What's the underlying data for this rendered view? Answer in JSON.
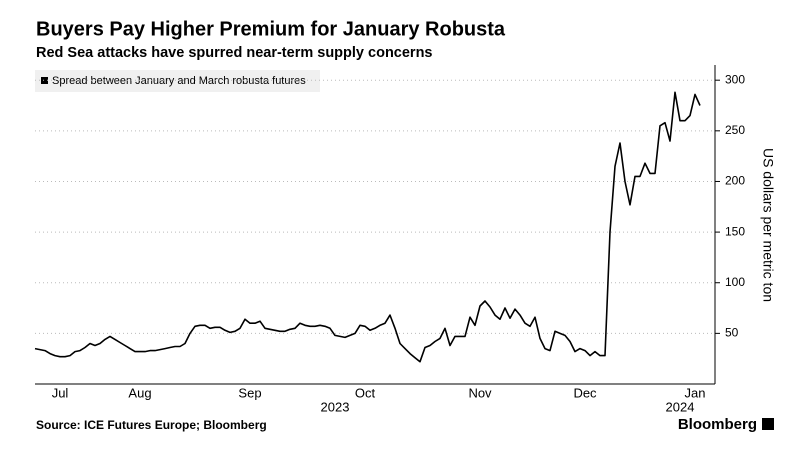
{
  "chart_data": {
    "type": "line",
    "title": "Buyers Pay Higher Premium for January Robusta",
    "subtitle": "Red Sea attacks have spurred near-term supply concerns",
    "y_axis_label": "US dollars per metric ton",
    "source": "Source: ICE Futures Europe; Bloomberg",
    "brand": "Bloomberg",
    "year_labels": [
      "2023",
      "2024"
    ],
    "categories": [
      null,
      null,
      null,
      null,
      null,
      "Jul",
      null,
      null,
      null,
      null,
      null,
      null,
      null,
      null,
      null,
      null,
      null,
      null,
      null,
      null,
      null,
      "Aug",
      null,
      null,
      null,
      null,
      null,
      null,
      null,
      null,
      null,
      null,
      null,
      null,
      null,
      null,
      null,
      null,
      null,
      null,
      null,
      null,
      null,
      "Sep",
      null,
      null,
      null,
      null,
      null,
      null,
      null,
      null,
      null,
      null,
      null,
      null,
      null,
      null,
      null,
      null,
      null,
      null,
      null,
      null,
      null,
      null,
      "Oct",
      null,
      null,
      null,
      null,
      null,
      null,
      null,
      null,
      null,
      null,
      null,
      null,
      null,
      null,
      null,
      null,
      null,
      null,
      null,
      null,
      null,
      null,
      "Nov",
      null,
      null,
      null,
      null,
      null,
      null,
      null,
      null,
      null,
      null,
      null,
      null,
      null,
      null,
      null,
      null,
      null,
      null,
      null,
      null,
      "Dec",
      null,
      null,
      null,
      null,
      null,
      null,
      null,
      null,
      null,
      null,
      null,
      null,
      null,
      null,
      null,
      null,
      null,
      null,
      null,
      null,
      null,
      "Jan",
      null
    ],
    "series": [
      {
        "name": "Spread between January and March robusta futures",
        "color": "#000000",
        "values": [
          35,
          34,
          33,
          30,
          28,
          27,
          27,
          28,
          32,
          33,
          36,
          40,
          38,
          40,
          44,
          47,
          44,
          41,
          38,
          35,
          32,
          32,
          32,
          33,
          33,
          34,
          35,
          36,
          37,
          37,
          40,
          50,
          57,
          58,
          58,
          55,
          56,
          56,
          53,
          51,
          52,
          55,
          64,
          60,
          60,
          62,
          55,
          54,
          53,
          52,
          52,
          54,
          55,
          60,
          58,
          57,
          57,
          58,
          57,
          55,
          48,
          47,
          46,
          48,
          50,
          58,
          57,
          53,
          55,
          58,
          60,
          68,
          55,
          40,
          35,
          30,
          26,
          22,
          36,
          38,
          42,
          45,
          55,
          38,
          47,
          47,
          47,
          66,
          58,
          77,
          82,
          76,
          68,
          64,
          75,
          65,
          74,
          68,
          60,
          57,
          66,
          45,
          35,
          33,
          52,
          50,
          48,
          42,
          32,
          35,
          33,
          28,
          32,
          28,
          28,
          150,
          215,
          238,
          200,
          177,
          205,
          205,
          218,
          208,
          208,
          255,
          258,
          240,
          288,
          260,
          260,
          265,
          286,
          275
        ]
      }
    ],
    "ylim": [
      0,
      315
    ],
    "yticks": [
      50,
      100,
      150,
      200,
      250,
      300
    ],
    "grid": true
  }
}
